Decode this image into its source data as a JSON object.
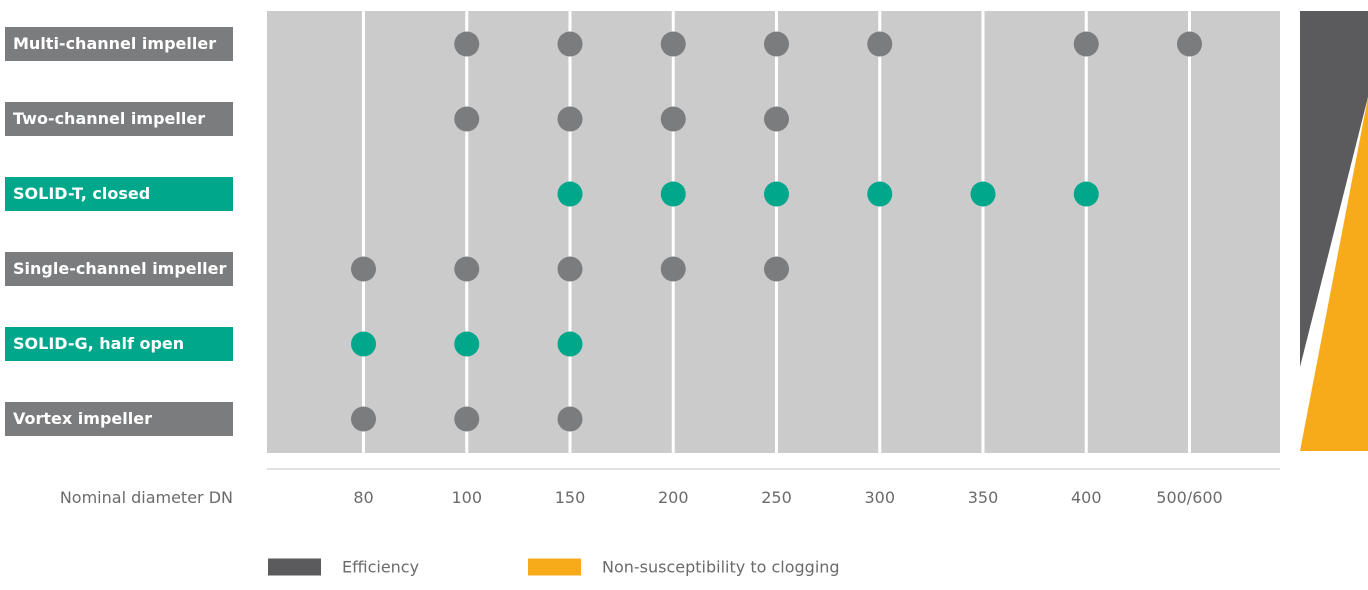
{
  "chart_data": {
    "type": "scatter",
    "xlabel": "Nominal diameter DN",
    "categories": [
      "80",
      "100",
      "150",
      "200",
      "250",
      "300",
      "350",
      "400",
      "500/600"
    ],
    "series": [
      {
        "name": "Multi-channel impeller",
        "highlight": false,
        "values": [
          "100",
          "150",
          "200",
          "250",
          "300",
          "400",
          "500/600"
        ]
      },
      {
        "name": "Two-channel impeller",
        "highlight": false,
        "values": [
          "100",
          "150",
          "200",
          "250"
        ]
      },
      {
        "name": "SOLID-T, closed",
        "highlight": true,
        "values": [
          "150",
          "200",
          "250",
          "300",
          "350",
          "400"
        ]
      },
      {
        "name": "Single-channel impeller",
        "highlight": false,
        "values": [
          "80",
          "100",
          "150",
          "200",
          "250"
        ]
      },
      {
        "name": "SOLID-G, half open",
        "highlight": true,
        "values": [
          "80",
          "100",
          "150"
        ]
      },
      {
        "name": "Vortex impeller",
        "highlight": false,
        "values": [
          "80",
          "100",
          "150"
        ]
      }
    ],
    "legend": [
      {
        "label": "Efficiency",
        "color": "#5b5b5d"
      },
      {
        "label": "Non-susceptibility to clogging",
        "color": "#f7ab1b"
      }
    ],
    "legend_position": "bottom",
    "grid": true
  },
  "colors": {
    "plot_background": "#cbcbcc",
    "grid": "#ffffff",
    "marker_default": "#7b7c7e",
    "marker_highlight": "#00a78b",
    "label_default": "#7b7c7e",
    "label_highlight": "#00a78b",
    "efficiency": "#5b5b5d",
    "clogging": "#f7ab1b"
  }
}
